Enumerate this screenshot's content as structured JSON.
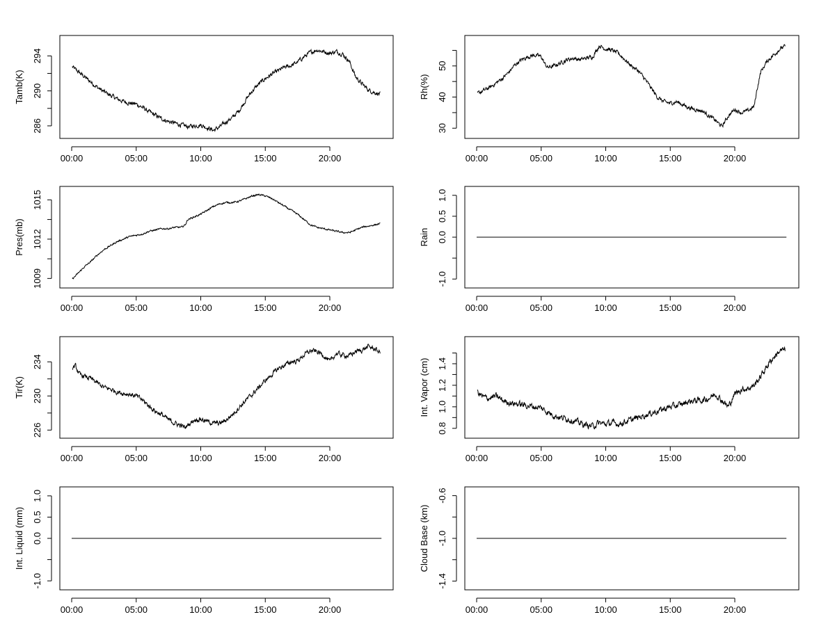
{
  "chart_data": [
    {
      "type": "line",
      "ylabel": "Tamb(K)",
      "x_tick_labels": [
        "00:00",
        "05:00",
        "10:00",
        "15:00",
        "20:00"
      ],
      "x_ticks_hours": [
        0,
        5,
        10,
        15,
        20
      ],
      "ylim": [
        285.2,
        295.7
      ],
      "y_ticks": [
        286,
        290,
        294
      ],
      "y_minor_ticks": [
        288,
        292
      ],
      "series": [
        {
          "x_hours": [
            0,
            0.5,
            1,
            1.5,
            2,
            2.5,
            3,
            3.5,
            4,
            4.5,
            5,
            5.5,
            6,
            6.5,
            7,
            7.5,
            8,
            8.5,
            9,
            9.5,
            10,
            10.5,
            11,
            11.5,
            12,
            12.5,
            13,
            13.5,
            14,
            14.5,
            15,
            15.5,
            16,
            16.5,
            17,
            17.5,
            18,
            18.5,
            19,
            19.5,
            20,
            20.5,
            21,
            21.5,
            22,
            22.5,
            23,
            23.5,
            24
          ],
          "values": [
            292.8,
            292.2,
            291.6,
            291.0,
            290.4,
            289.9,
            289.5,
            289.1,
            288.8,
            288.6,
            288.5,
            288.1,
            287.6,
            287.2,
            286.8,
            286.5,
            286.3,
            286.1,
            285.9,
            286.0,
            286.1,
            285.8,
            285.5,
            285.9,
            286.5,
            287.0,
            287.8,
            289.0,
            290.0,
            290.8,
            291.4,
            291.9,
            292.3,
            292.7,
            292.9,
            293.3,
            293.9,
            294.4,
            294.7,
            294.5,
            294.3,
            294.5,
            294.2,
            293.4,
            291.6,
            290.8,
            290.1,
            289.8,
            289.6
          ],
          "noise": 0.3
        }
      ]
    },
    {
      "type": "line",
      "ylabel": "Rh(%)",
      "x_tick_labels": [
        "00:00",
        "05:00",
        "10:00",
        "15:00",
        "20:00"
      ],
      "x_ticks_hours": [
        0,
        5,
        10,
        15,
        20
      ],
      "ylim": [
        28.5,
        58
      ],
      "y_ticks": [
        30,
        40,
        50
      ],
      "y_minor_ticks": [
        35,
        45,
        55
      ],
      "series": [
        {
          "x_hours": [
            0,
            0.5,
            1,
            1.5,
            2,
            2.5,
            3,
            3.5,
            4,
            4.5,
            5,
            5.3,
            5.5,
            6,
            6.5,
            7,
            7.5,
            8,
            8.5,
            9,
            9.5,
            10,
            10.5,
            11,
            11.5,
            12,
            12.5,
            13,
            13.5,
            14,
            14.5,
            15,
            15.5,
            16,
            16.5,
            17,
            17.5,
            18,
            18.5,
            19,
            19.5,
            20,
            20.5,
            21,
            21.5,
            21.7,
            22,
            22.5,
            23,
            23.5,
            24
          ],
          "values": [
            41.0,
            42.0,
            43.0,
            44.5,
            46.0,
            48.0,
            50.5,
            52.0,
            53.0,
            53.5,
            53.0,
            50.5,
            49.5,
            50.0,
            51.0,
            52.0,
            52.5,
            52.0,
            52.5,
            53.0,
            56.5,
            55.5,
            55.0,
            54.0,
            52.0,
            50.0,
            48.5,
            46.0,
            43.0,
            40.0,
            38.5,
            38.0,
            38.5,
            37.5,
            36.5,
            36.0,
            35.5,
            34.0,
            32.5,
            30.5,
            34.0,
            36.0,
            35.0,
            35.5,
            37.0,
            42.0,
            48.0,
            51.5,
            53.5,
            55.5,
            56.5
          ],
          "noise": 0.8
        }
      ]
    },
    {
      "type": "line",
      "ylabel": "Pres(mb)",
      "x_tick_labels": [
        "00:00",
        "05:00",
        "10:00",
        "15:00",
        "20:00"
      ],
      "x_ticks_hours": [
        0,
        5,
        10,
        15,
        20
      ],
      "ylim": [
        1008.7,
        1015.6
      ],
      "y_ticks": [
        1009,
        1012,
        1015
      ],
      "y_minor_ticks": [
        1010.5,
        1013.5
      ],
      "series": [
        {
          "x_hours": [
            0,
            0.5,
            1,
            1.5,
            2,
            2.5,
            3,
            3.5,
            4,
            4.5,
            5,
            5.5,
            6,
            6.5,
            7,
            7.5,
            8,
            8.5,
            8.8,
            9,
            9.5,
            10,
            10.5,
            11,
            11.5,
            12,
            12.5,
            13,
            13.5,
            14,
            14.5,
            15,
            15.5,
            16,
            16.5,
            17,
            17.5,
            18,
            18.5,
            19,
            19.5,
            20,
            20.5,
            21,
            21.5,
            22,
            22.5,
            23,
            23.5,
            24
          ],
          "values": [
            1008.9,
            1009.4,
            1009.9,
            1010.3,
            1010.8,
            1011.2,
            1011.5,
            1011.8,
            1012.0,
            1012.2,
            1012.3,
            1012.4,
            1012.6,
            1012.7,
            1012.8,
            1012.8,
            1012.9,
            1012.9,
            1013.1,
            1013.5,
            1013.7,
            1013.9,
            1014.2,
            1014.5,
            1014.7,
            1014.8,
            1014.8,
            1014.9,
            1015.1,
            1015.3,
            1015.4,
            1015.3,
            1015.1,
            1014.8,
            1014.5,
            1014.2,
            1013.9,
            1013.5,
            1013.1,
            1012.9,
            1012.8,
            1012.7,
            1012.6,
            1012.5,
            1012.5,
            1012.7,
            1012.9,
            1013.0,
            1013.1,
            1013.2
          ],
          "noise": 0.08
        }
      ]
    },
    {
      "type": "line",
      "ylabel": "Rain",
      "x_tick_labels": [
        "00:00",
        "05:00",
        "10:00",
        "15:00",
        "20:00"
      ],
      "x_ticks_hours": [
        0,
        5,
        10,
        15,
        20
      ],
      "ylim": [
        -1.08,
        1.08
      ],
      "y_ticks": [
        -1.0,
        0.0,
        0.5,
        1.0
      ],
      "y_tick_labels": [
        "-1.0",
        "0.0",
        "0.5",
        "1.0"
      ],
      "y_minor_ticks": [
        -0.5
      ],
      "series": [
        {
          "x_hours": [
            0,
            24
          ],
          "values": [
            0,
            0
          ],
          "noise": 0
        }
      ]
    },
    {
      "type": "line",
      "ylabel": "Tir(K)",
      "x_tick_labels": [
        "00:00",
        "05:00",
        "10:00",
        "15:00",
        "20:00"
      ],
      "x_ticks_hours": [
        0,
        5,
        10,
        15,
        20
      ],
      "ylim": [
        225.7,
        236.3
      ],
      "y_ticks": [
        226,
        230,
        234
      ],
      "y_minor_ticks": [
        228,
        232
      ],
      "series": [
        {
          "x_hours": [
            0,
            0.3,
            0.6,
            1,
            1.5,
            2,
            2.5,
            3,
            3.5,
            4,
            4.5,
            5,
            5.5,
            6,
            6.5,
            7,
            7.5,
            8,
            8.5,
            8.8,
            9,
            9.5,
            10,
            10.5,
            11,
            11.5,
            12,
            12.5,
            13,
            13.5,
            14,
            14.5,
            15,
            15.5,
            16,
            16.5,
            17,
            17.5,
            18,
            18.5,
            19,
            19.5,
            20,
            20.5,
            21,
            21.5,
            22,
            22.5,
            23,
            23.5,
            24
          ],
          "values": [
            233.3,
            233.5,
            232.5,
            232.3,
            232.0,
            231.5,
            231.0,
            230.8,
            230.5,
            230.3,
            230.2,
            230.0,
            229.5,
            228.8,
            228.2,
            227.8,
            227.2,
            226.8,
            226.5,
            226.3,
            226.6,
            227.2,
            227.3,
            227.0,
            226.8,
            226.8,
            227.2,
            227.9,
            228.7,
            229.5,
            230.2,
            231.0,
            231.8,
            232.5,
            233.2,
            233.6,
            234.0,
            234.1,
            234.8,
            235.3,
            235.2,
            234.8,
            234.0,
            235.0,
            234.8,
            234.7,
            235.2,
            235.4,
            235.8,
            235.5,
            235.0
          ],
          "noise": 0.35
        }
      ]
    },
    {
      "type": "line",
      "ylabel": "Int. Vapor (cm)",
      "x_tick_labels": [
        "00:00",
        "05:00",
        "10:00",
        "15:00",
        "20:00"
      ],
      "x_ticks_hours": [
        0,
        5,
        10,
        15,
        20
      ],
      "ylim": [
        0.76,
        1.6
      ],
      "y_ticks": [
        0.8,
        1.0,
        1.2,
        1.4
      ],
      "y_tick_labels": [
        "0.8",
        "1.0",
        "1.2",
        "1.4"
      ],
      "y_minor_ticks": [
        0.9,
        1.1,
        1.3,
        1.5
      ],
      "series": [
        {
          "x_hours": [
            0,
            0.5,
            1,
            1.5,
            2,
            2.5,
            3,
            3.5,
            4,
            4.5,
            5,
            5.5,
            6,
            6.5,
            7,
            7.5,
            8,
            8.5,
            9,
            9.5,
            10,
            10.5,
            11,
            11.5,
            12,
            12.5,
            13,
            13.5,
            14,
            14.5,
            15,
            15.5,
            16,
            16.5,
            17,
            17.5,
            18,
            18.5,
            19,
            19.5,
            20,
            20.5,
            21,
            21.5,
            22,
            22.5,
            23,
            23.5,
            24
          ],
          "values": [
            1.14,
            1.09,
            1.08,
            1.1,
            1.06,
            1.04,
            1.03,
            1.02,
            1.01,
            1.0,
            0.99,
            0.95,
            0.92,
            0.9,
            0.89,
            0.87,
            0.85,
            0.83,
            0.82,
            0.85,
            0.84,
            0.85,
            0.84,
            0.86,
            0.88,
            0.9,
            0.92,
            0.94,
            0.96,
            0.98,
            1.0,
            1.01,
            1.03,
            1.05,
            1.06,
            1.06,
            1.08,
            1.12,
            1.06,
            1.0,
            1.12,
            1.16,
            1.17,
            1.2,
            1.28,
            1.38,
            1.46,
            1.52,
            1.53
          ],
          "noise": 0.035
        }
      ]
    },
    {
      "type": "line",
      "ylabel": "Int. Liquid (mm)",
      "x_tick_labels": [
        "00:00",
        "05:00",
        "10:00",
        "15:00",
        "20:00"
      ],
      "x_ticks_hours": [
        0,
        5,
        10,
        15,
        20
      ],
      "ylim": [
        -1.08,
        1.08
      ],
      "y_ticks": [
        -1.0,
        0.0,
        0.5,
        1.0
      ],
      "y_tick_labels": [
        "-1.0",
        "0.0",
        "0.5",
        "1.0"
      ],
      "y_minor_ticks": [
        -0.5
      ],
      "series": [
        {
          "x_hours": [
            0,
            24
          ],
          "values": [
            0,
            0
          ],
          "noise": 0
        }
      ]
    },
    {
      "type": "line",
      "ylabel": "Cloud Base (km)",
      "x_tick_labels": [
        "00:00",
        "05:00",
        "10:00",
        "15:00",
        "20:00"
      ],
      "x_ticks_hours": [
        0,
        5,
        10,
        15,
        20
      ],
      "ylim": [
        -1.43,
        -0.57
      ],
      "y_ticks": [
        -1.4,
        -1.0,
        -0.6
      ],
      "y_tick_labels": [
        "-1.4",
        "-1.0",
        "-0.6"
      ],
      "y_minor_ticks": [
        -1.2,
        -0.8
      ],
      "series": [
        {
          "x_hours": [
            0,
            24
          ],
          "values": [
            -1,
            -1
          ],
          "noise": 0
        }
      ]
    }
  ]
}
